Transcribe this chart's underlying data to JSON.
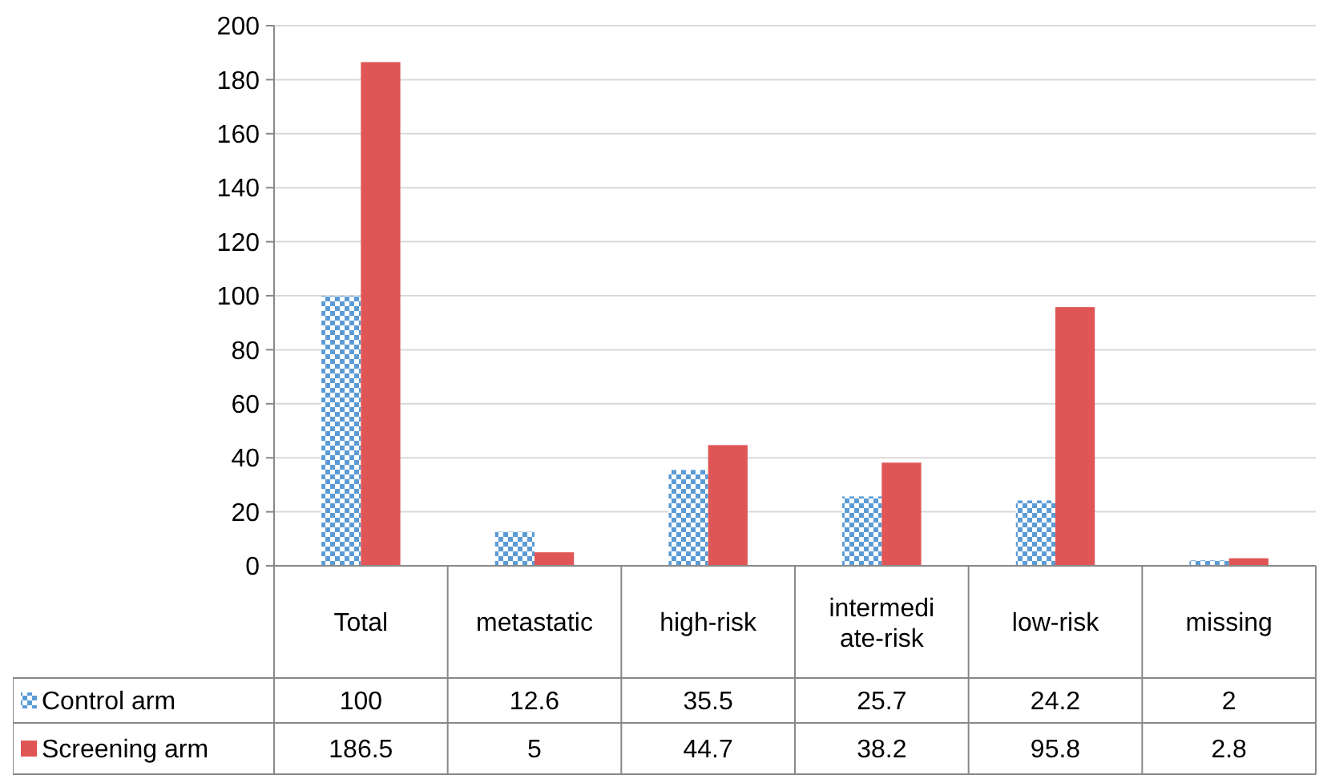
{
  "chart_data": {
    "type": "bar",
    "categories": [
      "Total",
      "metastatic",
      "high-risk",
      "intermediate-risk",
      "low-risk",
      "missing"
    ],
    "series": [
      {
        "name": "Control arm",
        "color": "#5b9bd5",
        "values": [
          100,
          12.6,
          35.5,
          25.7,
          24.2,
          2
        ]
      },
      {
        "name": "Screening arm",
        "color": "#e05555",
        "values": [
          186.5,
          5,
          44.7,
          38.2,
          95.8,
          2.8
        ]
      }
    ],
    "ylim": [
      0,
      200
    ],
    "yticks": [
      0,
      20,
      40,
      60,
      80,
      100,
      120,
      140,
      160,
      180,
      200
    ],
    "grid": "y",
    "legend": "bottom",
    "data_labels": true
  }
}
